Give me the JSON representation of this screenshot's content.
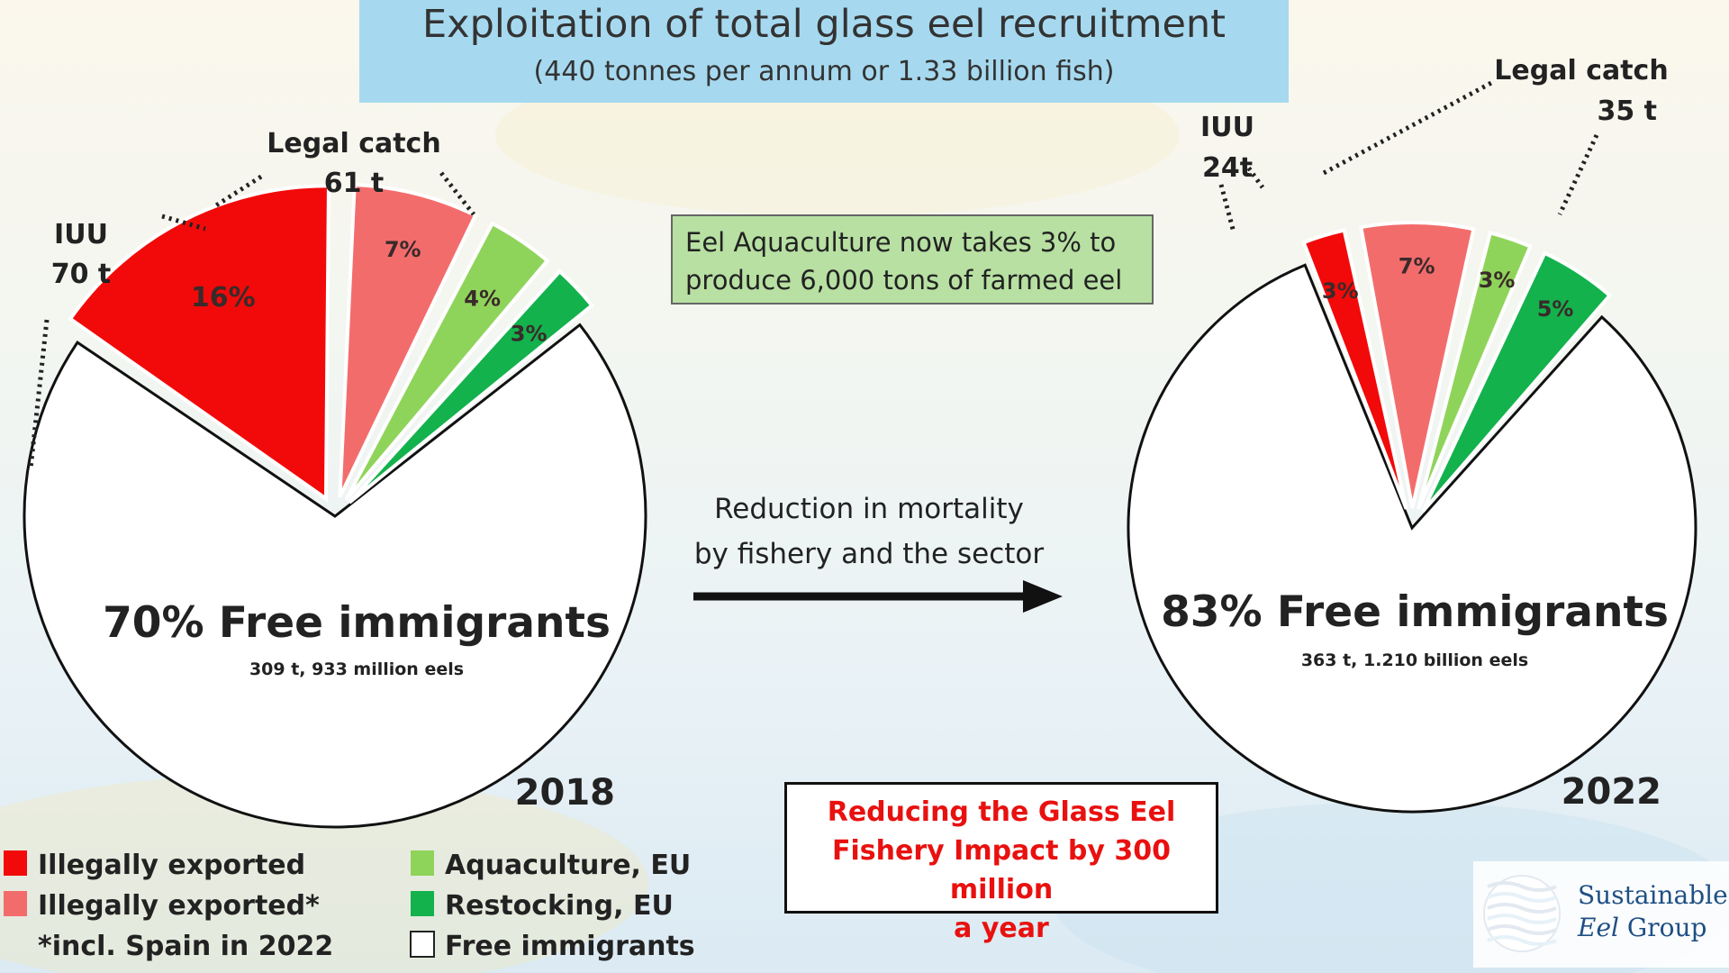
{
  "title": "Exploitation of total glass eel recruitment",
  "subtitle": "(440 tonnes per annum or 1.33 billion fish)",
  "callout_green": [
    "Eel Aquaculture now takes 3% to",
    "produce 6,000 tons of farmed eel"
  ],
  "callout_red": [
    "Reducing the Glass Eel",
    "Fishery Impact by 300 million",
    "a year"
  ],
  "arrow_text": [
    "Reduction in mortality",
    "by fishery and the sector"
  ],
  "logo": {
    "line1": "Sustainable",
    "line2": "Eel",
    "line2b": " Group",
    "icon": "waves-globe-icon"
  },
  "colors": {
    "illegal": "#f20a0a",
    "illegal_star": "#f36c6c",
    "aquaculture": "#8fd45a",
    "restocking": "#13b24c",
    "free": "#ffffff",
    "red_text": "#e8110f"
  },
  "legend": [
    {
      "label": "Illegally exported",
      "color": "#f20a0a"
    },
    {
      "label": "Illegally exported*",
      "color": "#f36c6c"
    },
    {
      "label": "*incl. Spain in 2022",
      "color": ""
    },
    {
      "label": "Aquaculture, EU",
      "color": "#8fd45a"
    },
    {
      "label": "Restocking, EU",
      "color": "#13b24c"
    },
    {
      "label": "Free immigrants",
      "color": "#ffffff"
    }
  ],
  "chart_data": [
    {
      "type": "pie",
      "year": "2018",
      "slices": [
        {
          "name": "Free immigrants",
          "value": 70,
          "label": "70% Free immigrants",
          "sublabel": "309 t, 933 million eels"
        },
        {
          "name": "Illegally exported",
          "value": 16,
          "label": "16%"
        },
        {
          "name": "Illegally exported*",
          "value": 7,
          "label": "7%"
        },
        {
          "name": "Aquaculture, EU",
          "value": 4,
          "label": "4%"
        },
        {
          "name": "Restocking, EU",
          "value": 3,
          "label": "3%"
        }
      ],
      "annotations": [
        {
          "text": [
            "IUU",
            "70 t"
          ]
        },
        {
          "text": [
            "Legal catch",
            "61 t"
          ]
        }
      ]
    },
    {
      "type": "pie",
      "year": "2022",
      "slices": [
        {
          "name": "Free immigrants",
          "value": 83,
          "label": "83% Free immigrants",
          "sublabel": "363 t, 1.210 billion eels"
        },
        {
          "name": "Illegally exported",
          "value": 3,
          "label": "3%"
        },
        {
          "name": "Illegally exported*",
          "value": 7,
          "label": "7%"
        },
        {
          "name": "Aquaculture, EU",
          "value": 3,
          "label": "3%"
        },
        {
          "name": "Restocking, EU",
          "value": 5,
          "label": "5%"
        }
      ],
      "annotations": [
        {
          "text": [
            "IUU",
            "24t"
          ]
        },
        {
          "text": [
            "Legal catch",
            "35 t"
          ]
        }
      ]
    }
  ]
}
